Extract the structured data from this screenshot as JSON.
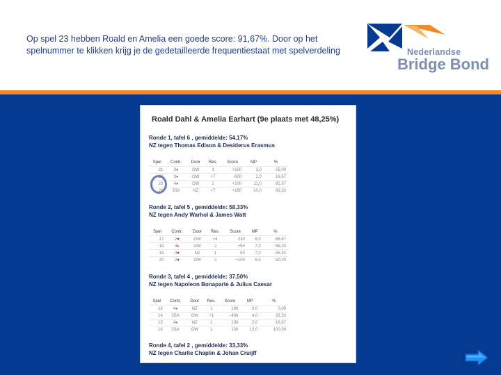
{
  "intro_text": "Op spel 23 hebben Roald en Amelia een goede score: 91,67%. Door op het spelnummer te klikken krijg je de gedetailleerde frequentiestaat met spelverdeling",
  "logo": {
    "line1": "Nederlandse",
    "line2": "Bridge Bond"
  },
  "colors": {
    "blue": "#063a91",
    "orange": "#f08a24",
    "logo_grey": "#7c8fb0"
  },
  "panel": {
    "title": "Roald Dahl & Amelia Earhart (9e plaats met 48,25%)",
    "headers": [
      "Spel",
      "Contr.",
      "Door",
      "Res.",
      "Score",
      "MP",
      "%"
    ],
    "rounds": [
      {
        "title": "Ronde 1, tafel 6 , gemiddelde: 54,17%",
        "subtitle": "NZ tegen Thomas Edison & Desiderus Erasmus",
        "rows": [
          [
            "21",
            "3♠",
            "OW",
            "3",
            "+100",
            "3,0",
            "25,00"
          ],
          [
            "22",
            "3♠",
            "OW",
            "+7",
            "-600",
            "2,0",
            "16,67"
          ],
          [
            "23",
            "4♠",
            "OW",
            "1",
            "+100",
            "11,0",
            "91,67"
          ],
          [
            "24",
            "3SA",
            "NZ",
            "+7",
            "+150",
            "10,0",
            "83,33"
          ]
        ]
      },
      {
        "title": "Ronde 2, tafel 5 , gemiddelde: 58,33%",
        "subtitle": "NZ tegen Andy Warhol & James Watt",
        "rows": [
          [
            "17",
            "2♥",
            "OW",
            "+4",
            "230",
            "8,0",
            "66,67"
          ],
          [
            "18",
            "4♠",
            "OW",
            "-1",
            "+50",
            "7,0",
            "58,33"
          ],
          [
            "19",
            "3♥",
            "NZ",
            "1",
            "50",
            "7,0",
            "58,33"
          ],
          [
            "20",
            "2♥",
            "OW",
            "-1",
            "+100",
            "6,0",
            "50,00"
          ]
        ]
      },
      {
        "title": "Ronde 3, tafel 4 , gemiddelde: 37,50%",
        "subtitle": "NZ tegen Napoleon Bonaparte & Julius Caesar",
        "rows": [
          [
            "13",
            "4♠",
            "NZ",
            "1",
            "100",
            "0,0",
            "0,00"
          ],
          [
            "14",
            "3SA",
            "OW",
            "+1",
            "-430",
            "4,0",
            "33,33"
          ],
          [
            "15",
            "4♠",
            "NZ",
            "1",
            "100",
            "2,0",
            "16,67"
          ],
          [
            "16",
            "3SA",
            "OW",
            "1",
            "100",
            "12,0",
            "100,00"
          ]
        ]
      },
      {
        "title": "Ronde 4, tafel 2 , gemiddelde: 33,33%",
        "subtitle": "NZ tegen Charlie Chaplin & Johan Cruijff",
        "rows": []
      }
    ]
  }
}
